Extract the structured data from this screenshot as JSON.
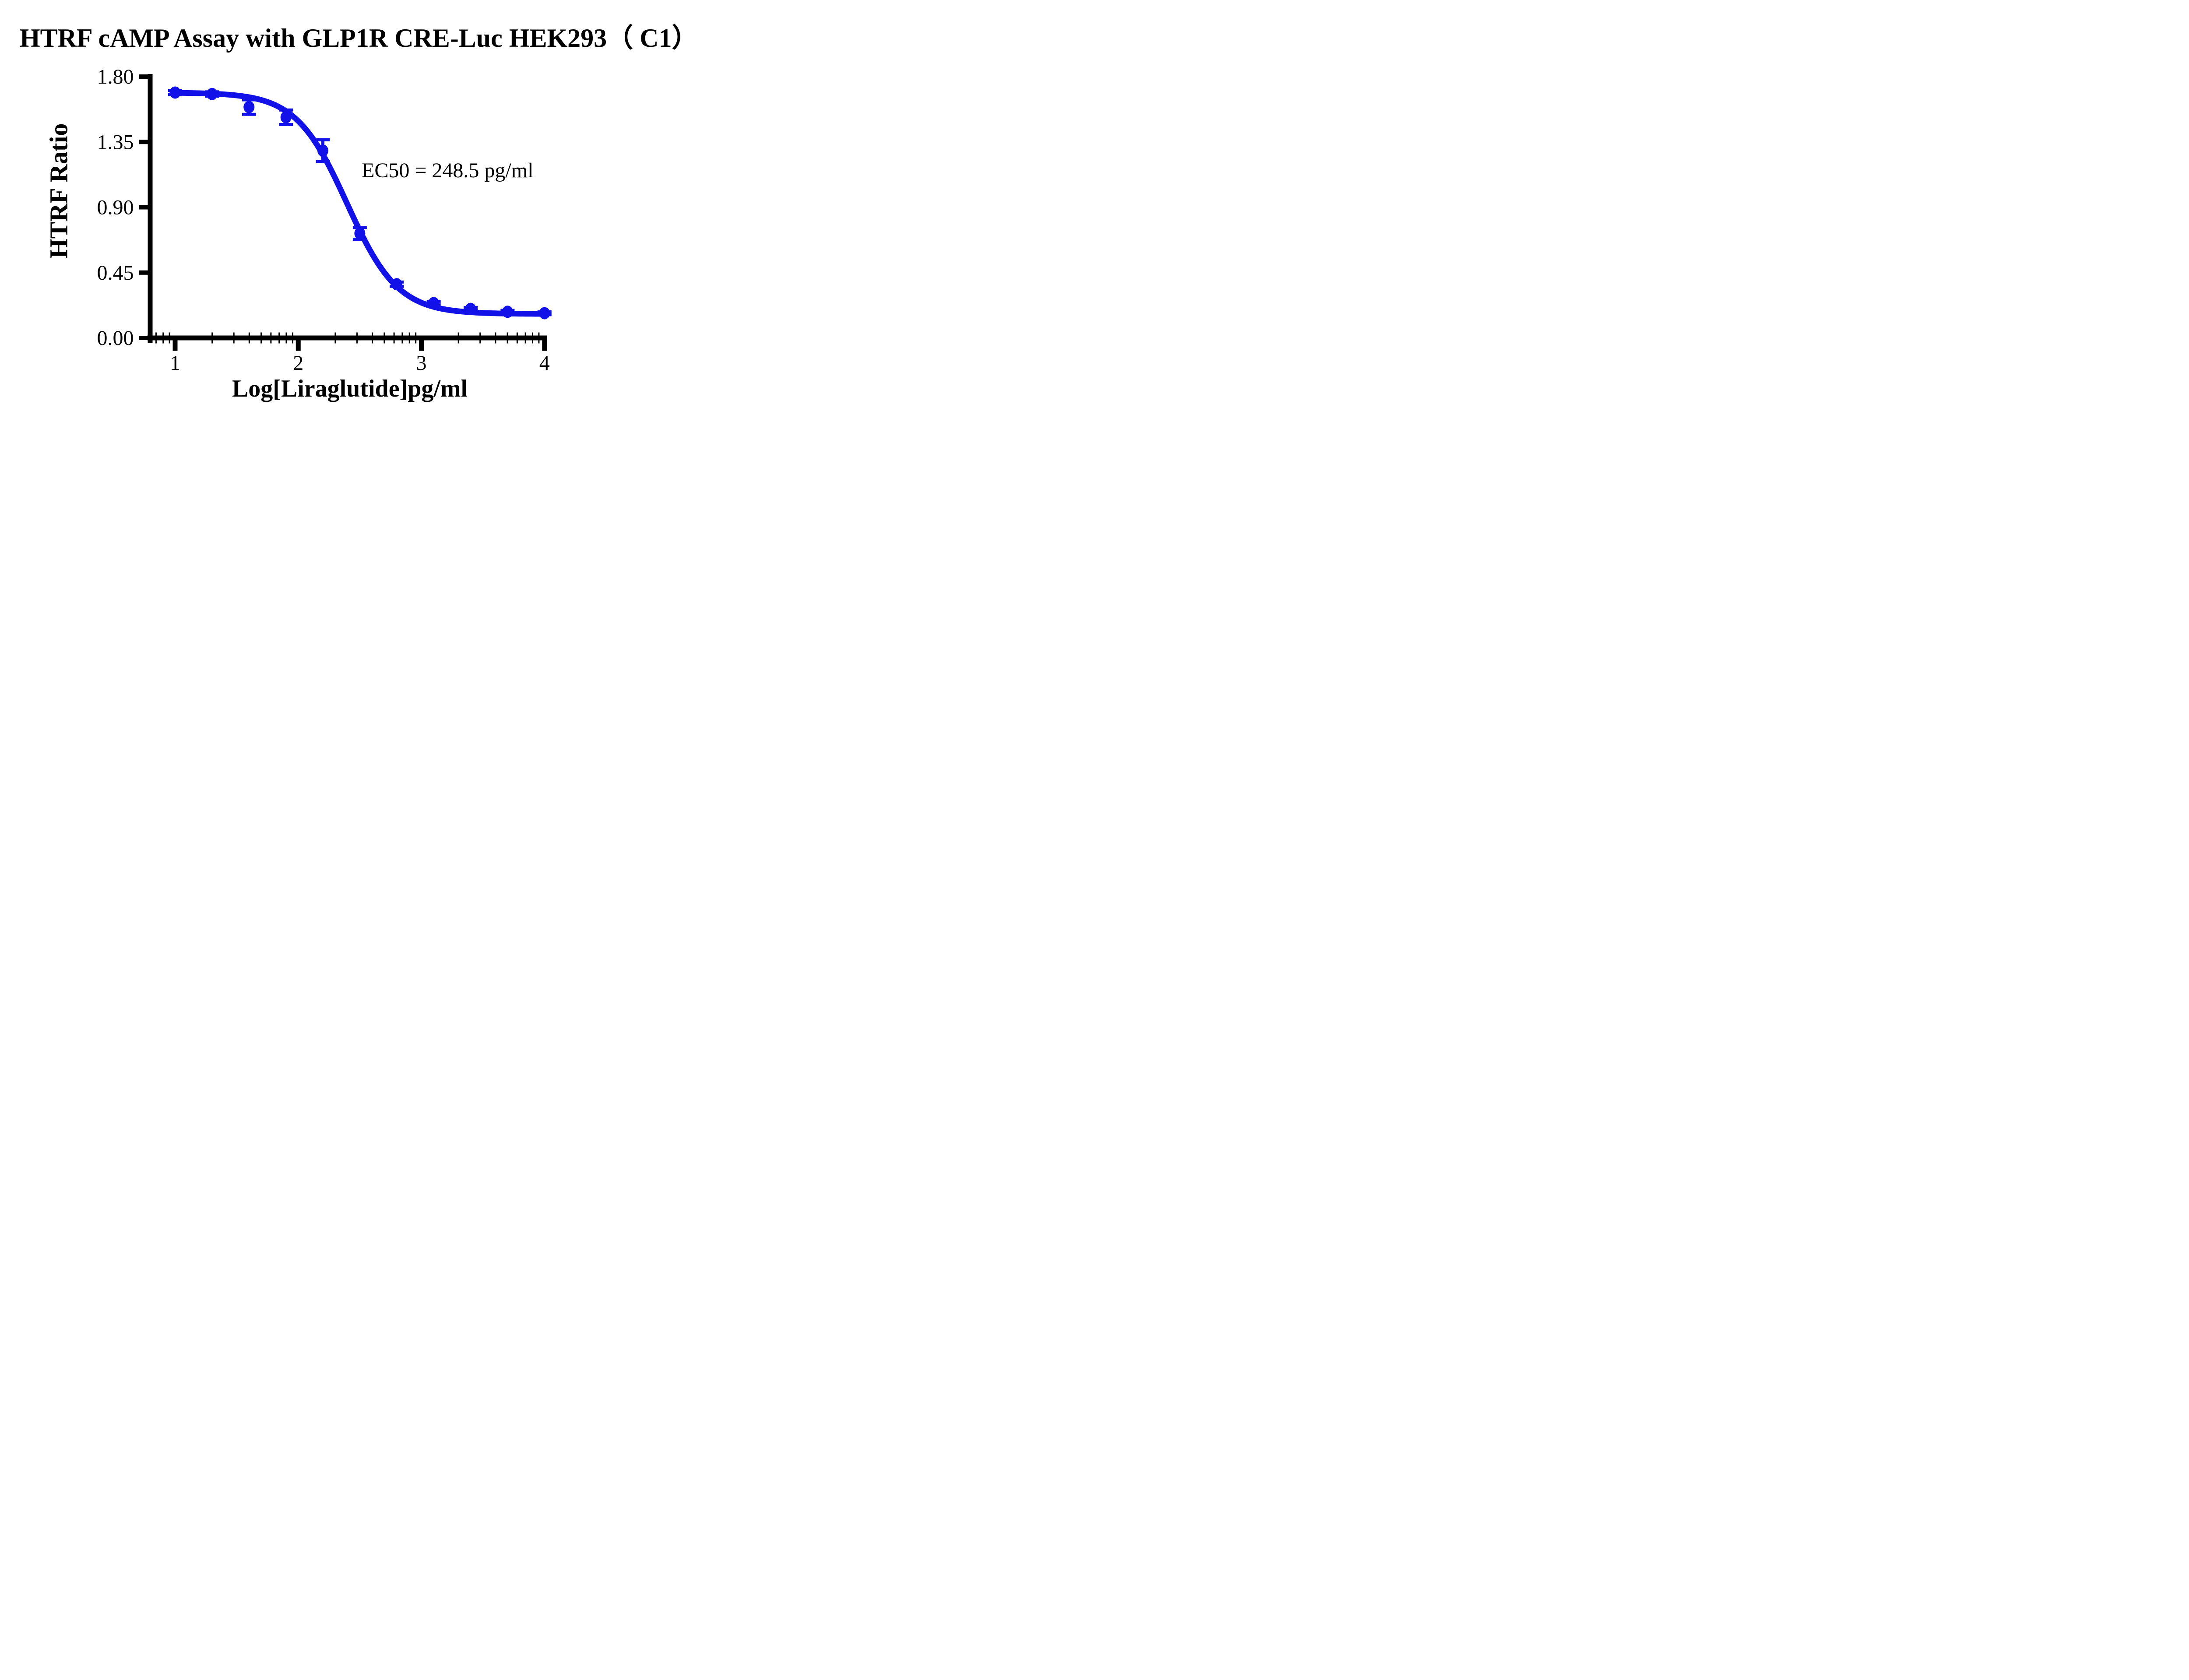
{
  "title": "HTRF cAMP Assay with GLP1R CRE-Luc HEK293（ C1）",
  "colors": {
    "series": "#1212e8",
    "axis": "#000000",
    "text": "#000000",
    "background": "#ffffff"
  },
  "chart_data": {
    "type": "scatter",
    "title": "HTRF cAMP Assay with GLP1R CRE-Luc HEK293（ C1）",
    "xlabel": "Log[Liraglutide]pg/ml",
    "ylabel": "HTRF Ratio",
    "x_scale": "log10_exponent",
    "xlim": [
      0.81,
      4.02
    ],
    "ylim": [
      0.0,
      1.8
    ],
    "x_ticks": [
      1,
      2,
      3,
      4
    ],
    "x_tick_labels": [
      "1",
      "2",
      "3",
      "4"
    ],
    "y_ticks": [
      1.8,
      1.35,
      0.9,
      0.45,
      0.0
    ],
    "y_tick_labels": [
      "1.80",
      "1.35",
      "0.90",
      "0.45",
      "0.00"
    ],
    "grid": false,
    "legend": "none",
    "annotation": {
      "text": "EC50 = 248.5 pg/ml"
    },
    "series": [
      {
        "name": "Liraglutide",
        "marker": "circle",
        "x": [
          1.0,
          1.3,
          1.6,
          1.9,
          2.2,
          2.5,
          2.8,
          3.1,
          3.4,
          3.7,
          4.0
        ],
        "y": [
          1.69,
          1.68,
          1.59,
          1.52,
          1.29,
          0.72,
          0.37,
          0.24,
          0.2,
          0.18,
          0.17
        ],
        "err": [
          0.015,
          0.015,
          0.05,
          0.05,
          0.075,
          0.04,
          0.015,
          0.012,
          0.01,
          0.01,
          0.01
        ],
        "fit": {
          "model": "4PL",
          "top": 1.69,
          "bottom": 0.165,
          "log_ec50": 2.3954,
          "hill_slope": 2.1
        },
        "ec50_label_value": "248.5 pg/ml"
      }
    ]
  }
}
